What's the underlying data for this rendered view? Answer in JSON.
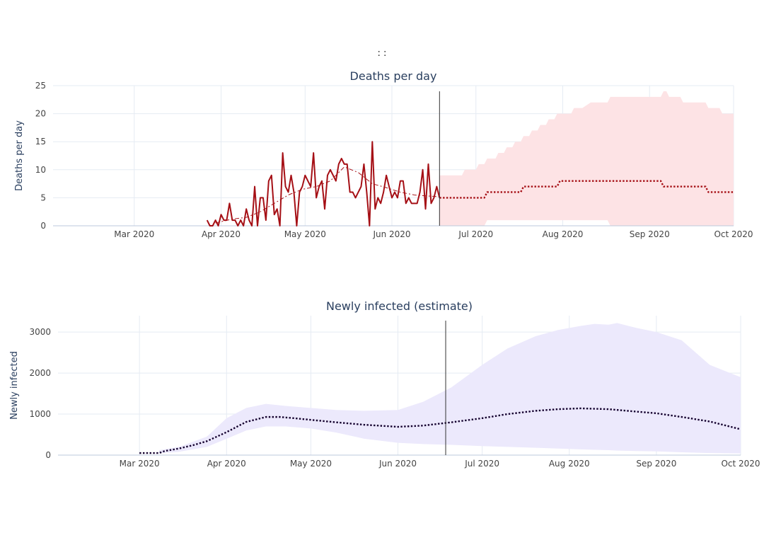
{
  "header_text": ":          :",
  "colors": {
    "deaths_line": "#a50f15",
    "deaths_band": "#fde3e5",
    "infected_line": "#14002e",
    "infected_band": "#ece9fc",
    "grid": "#e5ebf3",
    "axis": "#444444",
    "vline": "#333333"
  },
  "chart_data": [
    {
      "type": "line",
      "title": "Deaths per day",
      "ylabel": "Deaths per day",
      "xlabel": "",
      "ylim": [
        0,
        25
      ],
      "yticks": [
        0,
        5,
        10,
        15,
        20,
        25
      ],
      "xlim": [
        "2020-02-01",
        "2020-10-01"
      ],
      "xticks": [
        {
          "date": "2020-03-01",
          "label": "Mar 2020"
        },
        {
          "date": "2020-04-01",
          "label": "Apr 2020"
        },
        {
          "date": "2020-05-01",
          "label": "May 2020"
        },
        {
          "date": "2020-06-01",
          "label": "Jun 2020"
        },
        {
          "date": "2020-07-01",
          "label": "Jul 2020"
        },
        {
          "date": "2020-08-01",
          "label": "Aug 2020"
        },
        {
          "date": "2020-09-01",
          "label": "Sep 2020"
        },
        {
          "date": "2020-10-01",
          "label": "Oct 2020"
        }
      ],
      "grid": true,
      "vline_date": "2020-06-18",
      "series": [
        {
          "style": "solid",
          "x": [
            "2020-03-27",
            "2020-03-28",
            "2020-03-29",
            "2020-03-30",
            "2020-03-31",
            "2020-04-01",
            "2020-04-02",
            "2020-04-03",
            "2020-04-04",
            "2020-04-05",
            "2020-04-06",
            "2020-04-07",
            "2020-04-08",
            "2020-04-09",
            "2020-04-10",
            "2020-04-11",
            "2020-04-12",
            "2020-04-13",
            "2020-04-14",
            "2020-04-15",
            "2020-04-16",
            "2020-04-17",
            "2020-04-18",
            "2020-04-19",
            "2020-04-20",
            "2020-04-21",
            "2020-04-22",
            "2020-04-23",
            "2020-04-24",
            "2020-04-25",
            "2020-04-26",
            "2020-04-27",
            "2020-04-28",
            "2020-04-29",
            "2020-04-30",
            "2020-05-01",
            "2020-05-02",
            "2020-05-03",
            "2020-05-04",
            "2020-05-05",
            "2020-05-06",
            "2020-05-07",
            "2020-05-08",
            "2020-05-09",
            "2020-05-10",
            "2020-05-11",
            "2020-05-12",
            "2020-05-13",
            "2020-05-14",
            "2020-05-15",
            "2020-05-16",
            "2020-05-17",
            "2020-05-18",
            "2020-05-19",
            "2020-05-20",
            "2020-05-21",
            "2020-05-22",
            "2020-05-23",
            "2020-05-24",
            "2020-05-25",
            "2020-05-26",
            "2020-05-27",
            "2020-05-28",
            "2020-05-29",
            "2020-05-30",
            "2020-05-31",
            "2020-06-01",
            "2020-06-02",
            "2020-06-03",
            "2020-06-04",
            "2020-06-05",
            "2020-06-06",
            "2020-06-07",
            "2020-06-08",
            "2020-06-09",
            "2020-06-10",
            "2020-06-11",
            "2020-06-12",
            "2020-06-13",
            "2020-06-14",
            "2020-06-15",
            "2020-06-16",
            "2020-06-17",
            "2020-06-18"
          ],
          "y": [
            1,
            0,
            0,
            1,
            0,
            2,
            1,
            1,
            4,
            1,
            1,
            0,
            1,
            0,
            3,
            1,
            0,
            7,
            0,
            5,
            5,
            1,
            8,
            9,
            2,
            3,
            0,
            13,
            7,
            6,
            9,
            6,
            0,
            6,
            7,
            9,
            8,
            7,
            13,
            5,
            7,
            8,
            3,
            9,
            10,
            9,
            8,
            11,
            12,
            11,
            11,
            6,
            6,
            5,
            6,
            7,
            11,
            6,
            0,
            15,
            3,
            5,
            4,
            6,
            9,
            7,
            5,
            6,
            5,
            8,
            8,
            4,
            5,
            4,
            4,
            4,
            6,
            10,
            3,
            11,
            4,
            5,
            7,
            5
          ]
        },
        {
          "style": "dashdot",
          "x": [
            "2020-03-30",
            "2020-04-05",
            "2020-04-10",
            "2020-04-15",
            "2020-04-20",
            "2020-04-25",
            "2020-04-30",
            "2020-05-05",
            "2020-05-10",
            "2020-05-15",
            "2020-05-20",
            "2020-05-25",
            "2020-05-30",
            "2020-06-04",
            "2020-06-09",
            "2020-06-14",
            "2020-06-18"
          ],
          "y": [
            0.5,
            1.2,
            1.5,
            2.5,
            4.0,
            5.5,
            6.5,
            7.0,
            8.0,
            10.5,
            9.5,
            7.5,
            6.8,
            6.0,
            5.5,
            5.3,
            5.2
          ]
        },
        {
          "style": "dotted",
          "x": [
            "2020-06-18",
            "2020-07-04",
            "2020-07-05",
            "2020-07-17",
            "2020-07-18",
            "2020-07-30",
            "2020-07-31",
            "2020-09-05",
            "2020-09-06",
            "2020-09-21",
            "2020-09-22",
            "2020-10-01"
          ],
          "y": [
            5,
            5,
            6,
            6,
            7,
            7,
            8,
            8,
            7,
            7,
            6,
            6
          ]
        }
      ],
      "band": {
        "x": [
          "2020-06-18",
          "2020-06-26",
          "2020-06-27",
          "2020-07-01",
          "2020-07-02",
          "2020-07-04",
          "2020-07-05",
          "2020-07-08",
          "2020-07-09",
          "2020-07-11",
          "2020-07-12",
          "2020-07-14",
          "2020-07-15",
          "2020-07-17",
          "2020-07-18",
          "2020-07-20",
          "2020-07-21",
          "2020-07-23",
          "2020-07-24",
          "2020-07-26",
          "2020-07-27",
          "2020-07-29",
          "2020-07-30",
          "2020-08-01",
          "2020-08-02",
          "2020-08-04",
          "2020-08-05",
          "2020-08-07",
          "2020-08-08",
          "2020-08-11",
          "2020-08-12",
          "2020-08-17",
          "2020-08-18",
          "2020-09-05",
          "2020-09-06",
          "2020-09-07",
          "2020-09-08",
          "2020-09-12",
          "2020-09-13",
          "2020-09-21",
          "2020-09-22",
          "2020-09-26",
          "2020-09-27",
          "2020-10-01"
        ],
        "upper": [
          9,
          9,
          10,
          10,
          11,
          11,
          12,
          12,
          13,
          13,
          14,
          14,
          15,
          15,
          16,
          16,
          17,
          17,
          18,
          18,
          19,
          19,
          20,
          20,
          20,
          20,
          21,
          21,
          21,
          22,
          22,
          22,
          23,
          23,
          24,
          24,
          23,
          23,
          22,
          22,
          21,
          21,
          20,
          20
        ],
        "lower": [
          0,
          0,
          0,
          0,
          0,
          0,
          1,
          1,
          1,
          1,
          1,
          1,
          1,
          1,
          1,
          1,
          1,
          1,
          1,
          1,
          1,
          1,
          1,
          1,
          1,
          1,
          1,
          1,
          1,
          1,
          1,
          1,
          0,
          0,
          0,
          0,
          0,
          0,
          0,
          0,
          0,
          0,
          0,
          0
        ]
      }
    },
    {
      "type": "line",
      "title": "Newly infected (estimate)",
      "ylabel": "Newly infected",
      "xlabel": "",
      "ylim": [
        0,
        3400
      ],
      "yticks": [
        0,
        1000,
        2000,
        3000
      ],
      "xlim": [
        "2020-02-01",
        "2020-10-01"
      ],
      "xticks": [
        {
          "date": "2020-03-01",
          "label": "Mar 2020"
        },
        {
          "date": "2020-04-01",
          "label": "Apr 2020"
        },
        {
          "date": "2020-05-01",
          "label": "May 2020"
        },
        {
          "date": "2020-06-01",
          "label": "Jun 2020"
        },
        {
          "date": "2020-07-01",
          "label": "Jul 2020"
        },
        {
          "date": "2020-08-01",
          "label": "Aug 2020"
        },
        {
          "date": "2020-09-01",
          "label": "Sep 2020"
        },
        {
          "date": "2020-10-01",
          "label": "Oct 2020"
        }
      ],
      "grid": true,
      "vline_date": "2020-06-18",
      "series": [
        {
          "style": "dotted",
          "x": [
            "2020-03-01",
            "2020-03-08",
            "2020-03-10",
            "2020-03-15",
            "2020-03-20",
            "2020-03-25",
            "2020-04-01",
            "2020-04-08",
            "2020-04-15",
            "2020-04-20",
            "2020-04-25",
            "2020-05-01",
            "2020-05-10",
            "2020-05-20",
            "2020-06-01",
            "2020-06-10",
            "2020-06-20",
            "2020-07-01",
            "2020-07-10",
            "2020-07-20",
            "2020-07-28",
            "2020-08-05",
            "2020-08-15",
            "2020-08-25",
            "2020-09-01",
            "2020-09-10",
            "2020-09-20",
            "2020-10-01"
          ],
          "y": [
            50,
            50,
            100,
            160,
            240,
            340,
            560,
            810,
            930,
            930,
            900,
            860,
            800,
            740,
            690,
            720,
            800,
            900,
            1000,
            1080,
            1120,
            1140,
            1120,
            1060,
            1020,
            930,
            820,
            630
          ]
        }
      ],
      "band": {
        "x": [
          "2020-03-08",
          "2020-03-15",
          "2020-03-25",
          "2020-04-01",
          "2020-04-08",
          "2020-04-15",
          "2020-04-22",
          "2020-05-01",
          "2020-05-10",
          "2020-05-20",
          "2020-06-01",
          "2020-06-10",
          "2020-06-20",
          "2020-07-01",
          "2020-07-10",
          "2020-07-20",
          "2020-07-28",
          "2020-08-05",
          "2020-08-10",
          "2020-08-15",
          "2020-08-18",
          "2020-08-25",
          "2020-09-01",
          "2020-09-10",
          "2020-09-20",
          "2020-10-01"
        ],
        "upper": [
          120,
          200,
          450,
          900,
          1150,
          1250,
          1200,
          1150,
          1100,
          1080,
          1100,
          1300,
          1650,
          2200,
          2600,
          2900,
          3050,
          3150,
          3200,
          3180,
          3220,
          3100,
          3000,
          2800,
          2200,
          1900
        ],
        "lower": [
          40,
          80,
          200,
          400,
          600,
          700,
          700,
          650,
          550,
          400,
          300,
          270,
          250,
          220,
          200,
          180,
          160,
          140,
          130,
          120,
          110,
          100,
          90,
          70,
          50,
          40
        ]
      }
    }
  ]
}
